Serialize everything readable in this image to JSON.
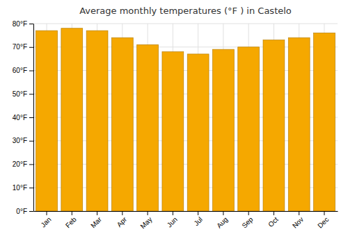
{
  "chart_data": {
    "type": "bar",
    "title": "Average monthly temperatures (°F ) in Castelo",
    "categories": [
      "Jan",
      "Feb",
      "Mar",
      "Apr",
      "May",
      "Jun",
      "Jul",
      "Aug",
      "Sep",
      "Oct",
      "Nov",
      "Dec"
    ],
    "values": [
      77,
      78,
      77,
      74,
      71,
      68,
      67,
      69,
      70,
      73,
      74,
      76
    ],
    "color": "#F5A800",
    "ylim": [
      0,
      80
    ],
    "yticks": [
      {
        "value": 0,
        "label": "0°F"
      },
      {
        "value": 10,
        "label": "10°F"
      },
      {
        "value": 20,
        "label": "20°F"
      },
      {
        "value": 30,
        "label": "30°F"
      },
      {
        "value": 40,
        "label": "40°F"
      },
      {
        "value": 50,
        "label": "50°F"
      },
      {
        "value": 60,
        "label": "60°F"
      },
      {
        "value": 70,
        "label": "70°F"
      },
      {
        "value": 80,
        "label": "80°F"
      }
    ],
    "grid": true
  }
}
